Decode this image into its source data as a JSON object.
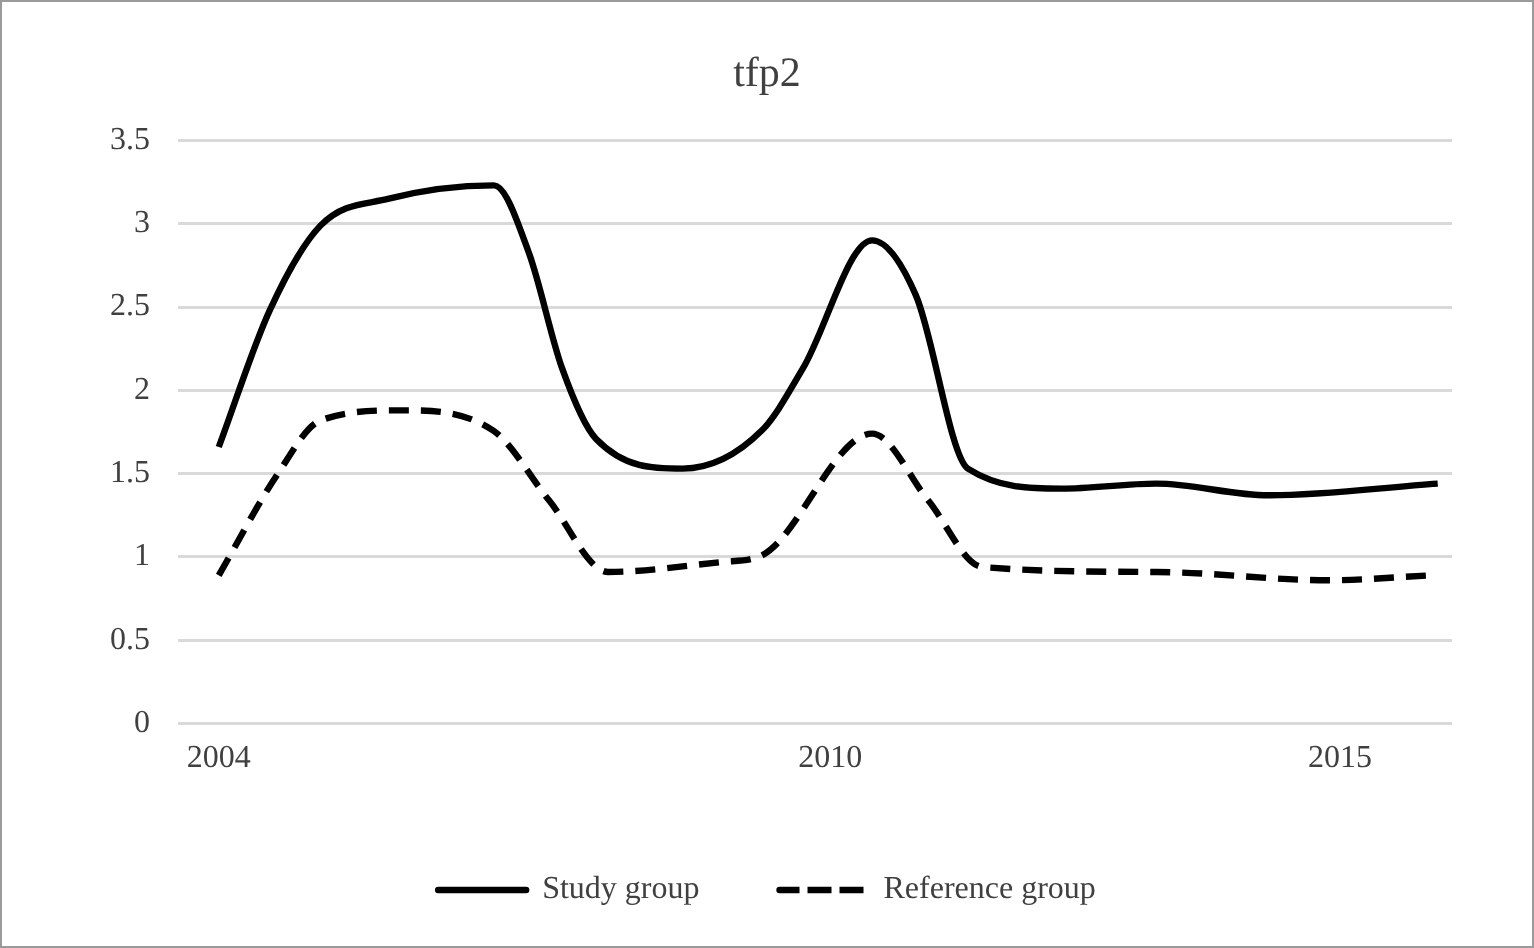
{
  "chart_data": {
    "type": "line",
    "title": "tfp2",
    "xlim": [
      2003.6,
      2016.1
    ],
    "xticks": [
      2004,
      2010,
      2015
    ],
    "ylim": [
      0,
      3.5
    ],
    "yticks": [
      0,
      0.5,
      1,
      1.5,
      2,
      2.5,
      3,
      3.5
    ],
    "grid": "y",
    "legend": "bottom",
    "marker": "none",
    "series": [
      {
        "name": "Study group",
        "color": "#000000",
        "line_style": "solid",
        "x": [
          2004,
          2004.5,
          2005,
          2005.67,
          2006.7,
          2007.04,
          2007.37,
          2007.7,
          2008.55,
          2009.33,
          2009.73,
          2010.41,
          2010.84,
          2011.35,
          2012.27,
          2013.2,
          2014.3,
          2015.96
        ],
        "values": [
          1.66,
          2.48,
          2.99,
          3.15,
          3.23,
          2.83,
          2.13,
          1.71,
          1.53,
          1.76,
          2.13,
          2.9,
          2.57,
          1.53,
          1.41,
          1.44,
          1.37,
          1.44
        ]
      },
      {
        "name": "Reference group",
        "color": "#000000",
        "line_style": "dashed",
        "x": [
          2004,
          2004.57,
          2005,
          2005.8,
          2006.69,
          2007.24,
          2007.82,
          2008.94,
          2009.33,
          2010.41,
          2010.96,
          2011.49,
          2013.2,
          2014.88,
          2015.9
        ],
        "values": [
          0.89,
          1.49,
          1.82,
          1.88,
          1.76,
          1.34,
          0.91,
          0.97,
          1.01,
          1.74,
          1.34,
          0.94,
          0.91,
          0.86,
          0.89
        ]
      }
    ]
  }
}
